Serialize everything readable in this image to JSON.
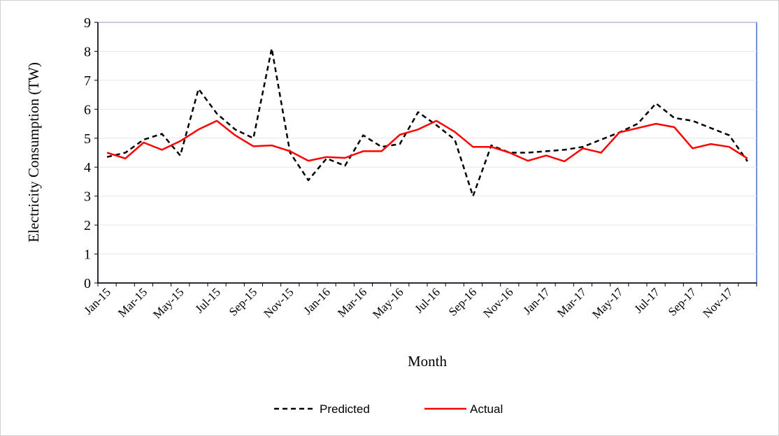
{
  "chart_data": {
    "type": "line",
    "x_label": "Month",
    "y_label": "Electricity Consumption (TW)",
    "categories": [
      "Jan-15",
      null,
      "Mar-15",
      null,
      "May-15",
      null,
      "Jul-15",
      null,
      "Sep-15",
      null,
      "Nov-15",
      null,
      "Jan-16",
      null,
      "Mar-16",
      null,
      "May-16",
      null,
      "Jul-16",
      null,
      "Sep-16",
      null,
      "Nov-16",
      null,
      "Jan-17",
      null,
      "Mar-17",
      null,
      "May-17",
      null,
      "Jul-17",
      null,
      "Sep-17",
      null,
      "Nov-17",
      null
    ],
    "series": [
      {
        "name": "Predicted",
        "color": "#000000",
        "dashed": true,
        "values": [
          4.35,
          4.5,
          4.95,
          5.15,
          4.4,
          6.7,
          5.85,
          5.3,
          5.0,
          8.1,
          4.5,
          3.55,
          4.3,
          4.05,
          5.1,
          4.7,
          4.8,
          5.9,
          5.45,
          4.95,
          3.0,
          4.75,
          4.5,
          4.5,
          4.55,
          4.6,
          4.7,
          4.95,
          5.2,
          5.5,
          6.2,
          5.7,
          5.6,
          5.35,
          5.1,
          4.2
        ]
      },
      {
        "name": "Actual",
        "color": "#ff0000",
        "dashed": false,
        "values": [
          4.5,
          4.3,
          4.85,
          4.6,
          4.9,
          5.3,
          5.6,
          5.1,
          4.72,
          4.75,
          4.55,
          4.22,
          4.35,
          4.32,
          4.55,
          4.55,
          5.12,
          5.3,
          5.6,
          5.22,
          4.7,
          4.7,
          4.5,
          4.22,
          4.4,
          4.2,
          4.65,
          4.5,
          5.2,
          5.35,
          5.5,
          5.38,
          4.65,
          4.8,
          4.7,
          4.3
        ]
      }
    ],
    "ylim": [
      0,
      9
    ],
    "yticks": [
      0,
      1,
      2,
      3,
      4,
      5,
      6,
      7,
      8,
      9
    ],
    "grid": true,
    "legend": "bottom"
  }
}
